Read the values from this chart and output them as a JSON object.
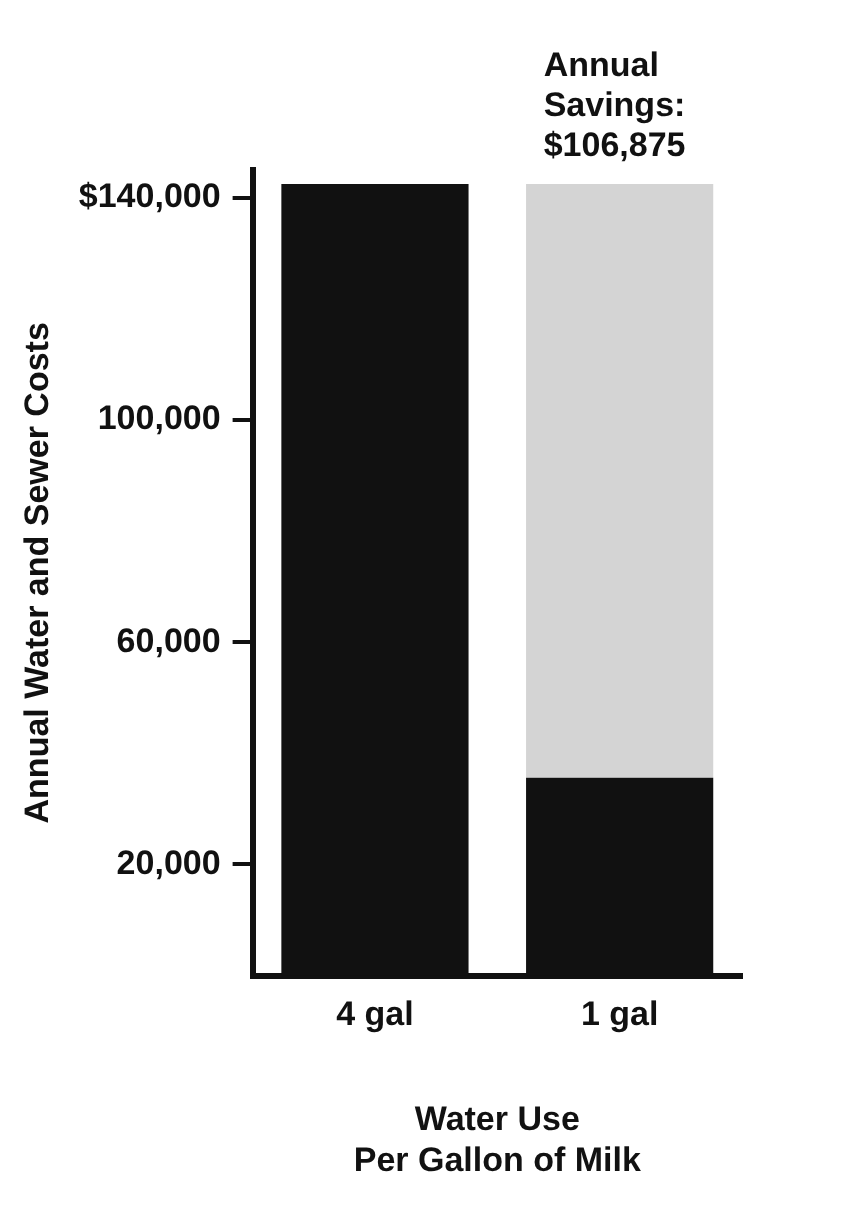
{
  "chart_data": {
    "type": "bar",
    "stacked": true,
    "categories": [
      "4 gal",
      "1 gal"
    ],
    "series": [
      {
        "color": "#111111",
        "values": [
          142500,
          35625
        ]
      },
      {
        "color": "#d4d4d4",
        "values": [
          null,
          106875
        ]
      }
    ],
    "ylim": [
      0,
      145000
    ],
    "yticks": [
      {
        "value": 20000,
        "label": "20,000"
      },
      {
        "value": 60000,
        "label": "60,000"
      },
      {
        "value": 100000,
        "label": "100,000"
      },
      {
        "value": 140000,
        "label": "$140,000"
      }
    ],
    "ylabel": "Annual Water and Sewer Costs",
    "xlabel": "Water Use\nPer Gallon of Milk",
    "annotations": [
      {
        "text": "Annual Savings: $106,875",
        "x": "1 gal",
        "y": 142500
      }
    ],
    "grid": false,
    "legend": false
  }
}
